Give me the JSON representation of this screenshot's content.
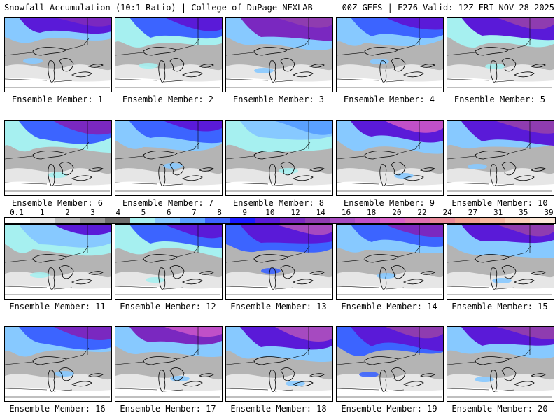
{
  "header": {
    "left_title": "Snowfall Accumulation (10:1 Ratio) | College of DuPage NEXLAB",
    "right_title": "00Z GEFS | F276 Valid: 12Z FRI NOV 28 2025"
  },
  "colorbar": {
    "labels": [
      "0.1",
      "1",
      "2",
      "3",
      "4",
      "5",
      "6",
      "7",
      "8",
      "9",
      "10",
      "12",
      "14",
      "16",
      "18",
      "20",
      "22",
      "24",
      "27",
      "31",
      "35",
      "39"
    ],
    "colors": [
      "#ffffff",
      "#e6e6e6",
      "#bdbdbd",
      "#969696",
      "#6e6e6e",
      "#a6f0f0",
      "#87c9ff",
      "#5aa0ff",
      "#3c64ff",
      "#1a1aff",
      "#5a1ad8",
      "#7a28c0",
      "#8f3cb0",
      "#a64ac0",
      "#c050c8",
      "#d860c8",
      "#e070b0",
      "#e88898",
      "#f0a090",
      "#f5b8a0",
      "#fad0b8",
      "#fde8d8"
    ]
  },
  "members": [
    {
      "label": "Ensemble Member: 1"
    },
    {
      "label": "Ensemble Member: 2"
    },
    {
      "label": "Ensemble Member: 3"
    },
    {
      "label": "Ensemble Member: 4"
    },
    {
      "label": "Ensemble Member: 5"
    },
    {
      "label": "Ensemble Member: 6"
    },
    {
      "label": "Ensemble Member: 7"
    },
    {
      "label": "Ensemble Member: 8"
    },
    {
      "label": "Ensemble Member: 9"
    },
    {
      "label": "Ensemble Member: 10"
    },
    {
      "label": "Ensemble Member: 11"
    },
    {
      "label": "Ensemble Member: 12"
    },
    {
      "label": "Ensemble Member: 13"
    },
    {
      "label": "Ensemble Member: 14"
    },
    {
      "label": "Ensemble Member: 15"
    },
    {
      "label": "Ensemble Member: 16"
    },
    {
      "label": "Ensemble Member: 17"
    },
    {
      "label": "Ensemble Member: 18"
    },
    {
      "label": "Ensemble Member: 19"
    },
    {
      "label": "Ensemble Member: 20"
    }
  ]
}
